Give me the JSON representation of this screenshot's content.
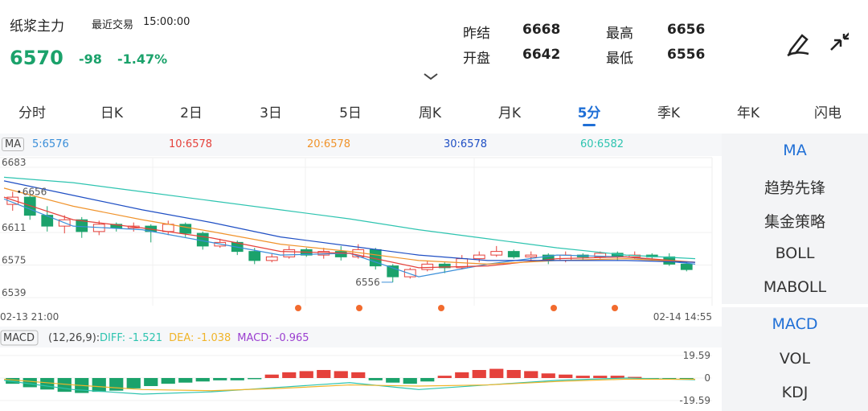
{
  "header": {
    "title": "纸浆主力",
    "last_trade_label": "最近交易",
    "time": "15:00:00",
    "price": "6570",
    "change": "-98",
    "change_pct": "-1.47%",
    "stats": [
      {
        "label": "昨结",
        "value": "6668"
      },
      {
        "label": "最高",
        "value": "6656"
      },
      {
        "label": "开盘",
        "value": "6642"
      },
      {
        "label": "最低",
        "value": "6556"
      }
    ]
  },
  "tabs": [
    "分时",
    "日K",
    "2日",
    "3日",
    "5日",
    "周K",
    "月K",
    "5分",
    "季K",
    "年K",
    "闪电"
  ],
  "active_tab": 7,
  "ma_legend": {
    "label": "MA",
    "items": [
      {
        "text": "5:6576",
        "color": "#3b8fd9"
      },
      {
        "text": "10:6578",
        "color": "#e5413b"
      },
      {
        "text": "20:6578",
        "color": "#f0932b"
      },
      {
        "text": "30:6578",
        "color": "#1f4fc4"
      },
      {
        "text": "60:6582",
        "color": "#2ec4b0"
      }
    ]
  },
  "kline": {
    "ylim": [
      6539,
      6683
    ],
    "yticks": [
      6683,
      6611,
      6575,
      6539
    ],
    "xlabels": [
      "02-13 21:00",
      "02-14 14:55"
    ],
    "high_mark": 6656,
    "low_mark": 6556,
    "up_color": "#e5413b",
    "down_color": "#1ba26b",
    "candles": [
      [
        6642,
        6650,
        6656,
        6635
      ],
      [
        6650,
        6630,
        6652,
        6625
      ],
      [
        6630,
        6618,
        6640,
        6612
      ],
      [
        6618,
        6625,
        6630,
        6610
      ],
      [
        6625,
        6612,
        6628,
        6605
      ],
      [
        6612,
        6620,
        6624,
        6608
      ],
      [
        6620,
        6616,
        6622,
        6612
      ],
      [
        6616,
        6618,
        6622,
        6612
      ],
      [
        6618,
        6612,
        6620,
        6600
      ],
      [
        6612,
        6620,
        6624,
        6608
      ],
      [
        6620,
        6610,
        6622,
        6606
      ],
      [
        6610,
        6596,
        6612,
        6592
      ],
      [
        6596,
        6600,
        6604,
        6594
      ],
      [
        6600,
        6590,
        6602,
        6586
      ],
      [
        6590,
        6580,
        6594,
        6576
      ],
      [
        6580,
        6584,
        6588,
        6578
      ],
      [
        6584,
        6592,
        6596,
        6582
      ],
      [
        6592,
        6586,
        6594,
        6584
      ],
      [
        6586,
        6590,
        6594,
        6582
      ],
      [
        6590,
        6584,
        6596,
        6580
      ],
      [
        6584,
        6592,
        6598,
        6582
      ],
      [
        6592,
        6574,
        6594,
        6570
      ],
      [
        6574,
        6562,
        6576,
        6556
      ],
      [
        6562,
        6570,
        6572,
        6560
      ],
      [
        6570,
        6576,
        6580,
        6568
      ],
      [
        6576,
        6572,
        6578,
        6566
      ],
      [
        6572,
        6582,
        6586,
        6570
      ],
      [
        6582,
        6586,
        6590,
        6578
      ],
      [
        6586,
        6590,
        6596,
        6584
      ],
      [
        6590,
        6584,
        6592,
        6582
      ],
      [
        6584,
        6586,
        6590,
        6580
      ],
      [
        6586,
        6580,
        6588,
        6576
      ],
      [
        6580,
        6586,
        6590,
        6578
      ],
      [
        6586,
        6584,
        6588,
        6580
      ],
      [
        6584,
        6588,
        6590,
        6582
      ],
      [
        6588,
        6584,
        6590,
        6580
      ],
      [
        6584,
        6586,
        6590,
        6582
      ],
      [
        6586,
        6584,
        6588,
        6580
      ],
      [
        6584,
        6576,
        6588,
        6574
      ],
      [
        6576,
        6570,
        6578,
        6568
      ]
    ],
    "ma_lines": [
      [
        6648,
        6618,
        6614,
        6600,
        6586,
        6588,
        6562,
        6576,
        6586,
        6584,
        6576
      ],
      [
        6650,
        6625,
        6616,
        6605,
        6590,
        6588,
        6572,
        6574,
        6582,
        6584,
        6578
      ],
      [
        6660,
        6640,
        6625,
        6612,
        6598,
        6590,
        6580,
        6576,
        6580,
        6582,
        6578
      ],
      [
        6668,
        6652,
        6636,
        6622,
        6606,
        6596,
        6586,
        6580,
        6580,
        6580,
        6578
      ],
      [
        6672,
        6666,
        6656,
        6646,
        6636,
        6626,
        6614,
        6604,
        6594,
        6586,
        6582
      ]
    ]
  },
  "macd": {
    "label": "MACD",
    "params": "(12,26,9):",
    "legend": [
      {
        "label": "DIFF:",
        "value": -1.521,
        "color": "#2ec4b0"
      },
      {
        "label": "DEA:",
        "value": -1.038,
        "color": "#f0b429"
      },
      {
        "label": "MACD:",
        "value": -0.965,
        "color": "#9b3fd0"
      }
    ],
    "ylim": [
      -19.59,
      19.59
    ],
    "yticks": [
      19.59,
      0,
      -19.59
    ],
    "hist": [
      -5,
      -8,
      -10,
      -12,
      -13,
      -12,
      -11,
      -9,
      -7,
      -5,
      -4,
      -3,
      -2,
      -2,
      -1,
      3,
      5,
      6,
      7,
      6,
      5,
      -2,
      -4,
      -5,
      -3,
      2,
      5,
      7,
      8,
      7,
      6,
      4,
      3,
      2,
      2,
      2,
      1,
      -1,
      -1,
      -1
    ],
    "diff": [
      -2,
      -10,
      -14,
      -12,
      -8,
      -4,
      -10,
      -6,
      -2,
      0,
      -1.521
    ],
    "dea": [
      -1,
      -6,
      -10,
      -11,
      -9,
      -6,
      -7,
      -6,
      -3,
      -1,
      -1.038
    ]
  },
  "side_menu": [
    [
      "MA",
      "趋势先锋",
      "集金策略",
      "BOLL",
      "MABOLL"
    ],
    [
      "MACD",
      "VOL",
      "KDJ"
    ]
  ]
}
